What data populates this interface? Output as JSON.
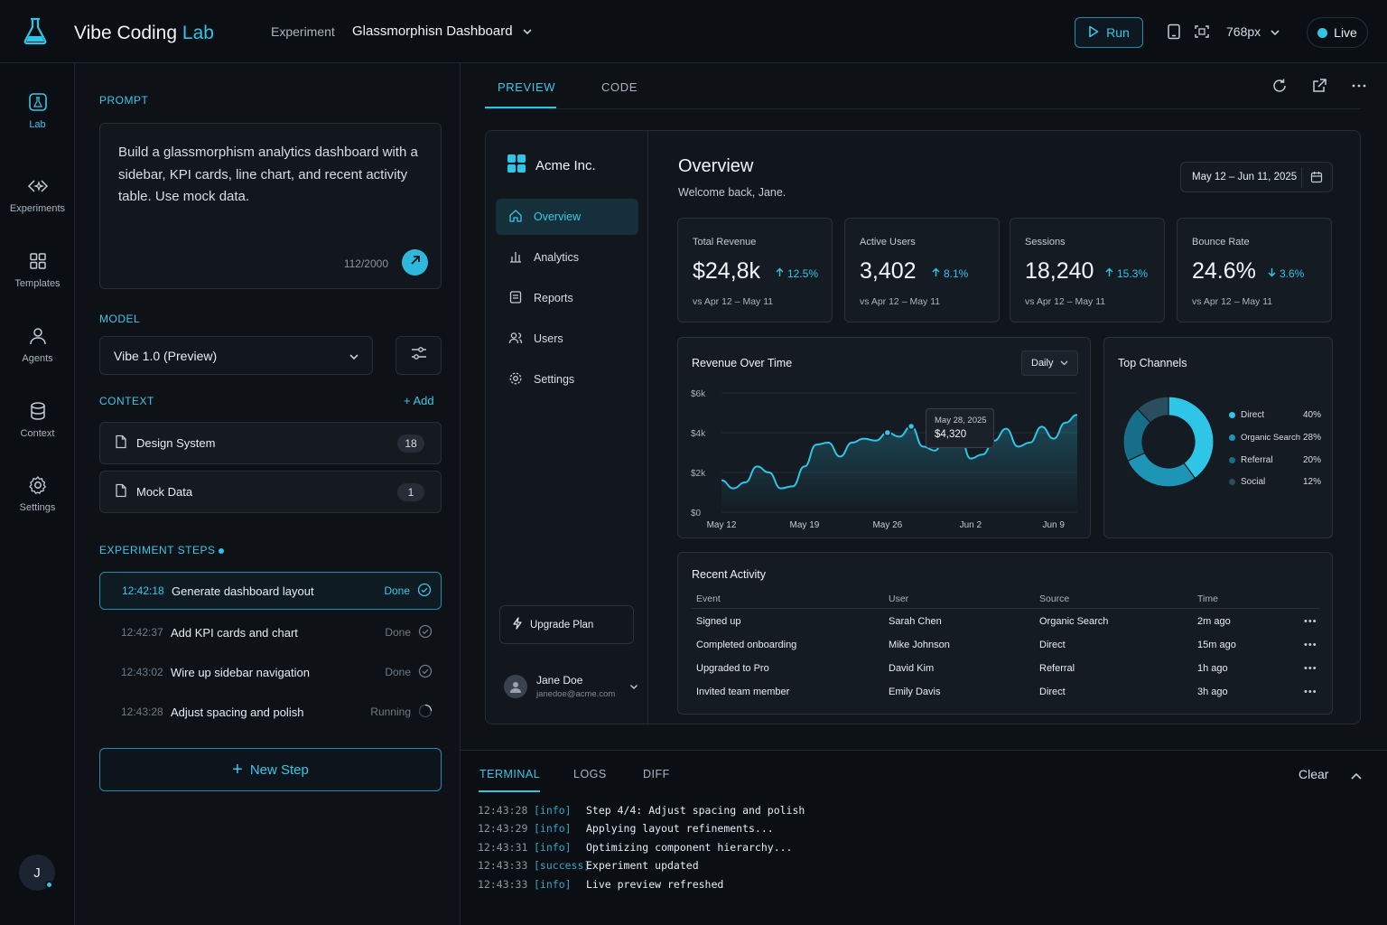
{
  "app": {
    "title_main": "Vibe Coding",
    "title_accent": "Lab"
  },
  "header": {
    "experiment_label": "Experiment",
    "experiment_name": "Glassmorphisn Dashboard",
    "run_label": "Run",
    "viewport": "768px",
    "live_label": "Live"
  },
  "rail": [
    {
      "label": "Lab",
      "icon": "flask-square-icon"
    },
    {
      "label": "Experiments",
      "icon": "code-spark-icon"
    },
    {
      "label": "Templates",
      "icon": "grid-icon"
    },
    {
      "label": "Agents",
      "icon": "user-icon"
    },
    {
      "label": "Context",
      "icon": "database-icon"
    },
    {
      "label": "Settings",
      "icon": "gear-icon"
    }
  ],
  "user_initial": "J",
  "panel": {
    "prompt_label": "PROMPT",
    "prompt_text": "Build a glassmorphism analytics dashboard with a sidebar, KPI cards, line chart, and recent activity table. Use mock data.",
    "prompt_count": "112/2000",
    "model_label": "MODEL",
    "model_value": "Vibe 1.0 (Preview)",
    "context_label": "CONTEXT",
    "add_label": "Add",
    "context_items": [
      {
        "name": "Design System",
        "count": "18"
      },
      {
        "name": "Mock Data",
        "count": "1"
      }
    ],
    "steps_label": "EXPERIMENT STEPS",
    "steps": [
      {
        "time": "12:42:18",
        "title": "Generate dashboard layout",
        "status": "Done"
      },
      {
        "time": "12:42:37",
        "title": "Add KPI cards and chart",
        "status": "Done"
      },
      {
        "time": "12:43:02",
        "title": "Wire up sidebar navigation",
        "status": "Done"
      },
      {
        "time": "12:43:28",
        "title": "Adjust spacing and polish",
        "status": "Running"
      }
    ],
    "new_step_label": "New Step"
  },
  "preview": {
    "tabs": [
      "PREVIEW",
      "CODE"
    ],
    "org": "Acme Inc.",
    "nav": [
      "Overview",
      "Analytics",
      "Reports",
      "Users",
      "Settings"
    ],
    "upgrade": "Upgrade Plan",
    "user_name": "Jane Doe",
    "user_email": "janedoe@acme.com",
    "title": "Overview",
    "subtitle": "Welcome back, Jane.",
    "date_range": "May 12 – Jun 11, 2025",
    "kpis": [
      {
        "label": "Total Revenue",
        "value": "$24,8k",
        "delta": "12.5%",
        "dir": "up",
        "compare": "vs Apr 12 – May 11"
      },
      {
        "label": "Active Users",
        "value": "3,402",
        "delta": "8.1%",
        "dir": "up",
        "compare": "vs Apr 12 – May 11"
      },
      {
        "label": "Sessions",
        "value": "18,240",
        "delta": "15.3%",
        "dir": "up",
        "compare": "vs Apr 12 – May 11"
      },
      {
        "label": "Bounce Rate",
        "value": "24.6%",
        "delta": "3.6%",
        "dir": "down",
        "compare": "vs Apr 12 – May 11"
      }
    ],
    "revenue_title": "Revenue Over Time",
    "granularity": "Daily",
    "tooltip_date": "May 28, 2025",
    "tooltip_value": "$4,320",
    "channels_title": "Top Channels",
    "activity_title": "Recent Activity",
    "table_headers": [
      "Event",
      "User",
      "Source",
      "Time"
    ],
    "table_rows": [
      [
        "Signed up",
        "Sarah Chen",
        "Organic Search",
        "2m ago"
      ],
      [
        "Completed onboarding",
        "Mike Johnson",
        "Direct",
        "15m ago"
      ],
      [
        "Upgraded to Pro",
        "David Kim",
        "Referral",
        "1h ago"
      ],
      [
        "Invited team member",
        "Emily Davis",
        "Direct",
        "3h ago"
      ]
    ]
  },
  "terminal": {
    "tabs": [
      "TERMINAL",
      "LOGS",
      "DIFF"
    ],
    "clear_label": "Clear",
    "lines": [
      {
        "time": "12:43:28",
        "level": "[info]",
        "msg": "Step 4/4: Adjust spacing and polish"
      },
      {
        "time": "12:43:29",
        "level": "[info]",
        "msg": "Applying layout refinements..."
      },
      {
        "time": "12:43:31",
        "level": "[info]",
        "msg": "Optimizing component hierarchy..."
      },
      {
        "time": "12:43:33",
        "level": "[success]",
        "msg": "Experiment updated"
      },
      {
        "time": "12:43:33",
        "level": "[info]",
        "msg": "Live preview refreshed"
      }
    ]
  },
  "colors": {
    "accent": "#2ec5e6",
    "background": "#0c1015",
    "panel": "#151b22"
  },
  "chart_data": [
    {
      "type": "line",
      "title": "Revenue Over Time",
      "x": [
        "May 12",
        "May 13",
        "May 14",
        "May 15",
        "May 16",
        "May 17",
        "May 18",
        "May 19",
        "May 20",
        "May 21",
        "May 22",
        "May 23",
        "May 24",
        "May 25",
        "May 26",
        "May 27",
        "May 28",
        "May 29",
        "May 30",
        "May 31",
        "Jun 1",
        "Jun 2",
        "Jun 3",
        "Jun 4",
        "Jun 5",
        "Jun 6",
        "Jun 7",
        "Jun 8",
        "Jun 9",
        "Jun 10",
        "Jun 11"
      ],
      "series": [
        {
          "values": [
            1600,
            1200,
            1500,
            2300,
            2000,
            1200,
            1300,
            2300,
            3400,
            3500,
            2800,
            3500,
            3700,
            3600,
            4000,
            3800,
            4320,
            3300,
            3100,
            4100,
            4200,
            2700,
            2900,
            3600,
            4200,
            3300,
            3500,
            4300,
            3700,
            4500,
            4900
          ]
        }
      ],
      "xticks": [
        "May 12",
        "May 19",
        "May 26",
        "Jun 2",
        "Jun 9"
      ],
      "yticks": [
        "$0",
        "$2k",
        "$4k",
        "$6k"
      ],
      "ylim": [
        0,
        6000
      ],
      "grid": true
    },
    {
      "type": "pie",
      "title": "Top Channels",
      "categories": [
        "Direct",
        "Organic Search",
        "Referral",
        "Social"
      ],
      "values": [
        40,
        28,
        20,
        12
      ],
      "labels": [
        "40%",
        "28%",
        "20%",
        "12%"
      ],
      "colors": [
        "#2ec5e6",
        "#1f95b6",
        "#176e88",
        "#2b4e5e"
      ],
      "legend": "right"
    }
  ]
}
